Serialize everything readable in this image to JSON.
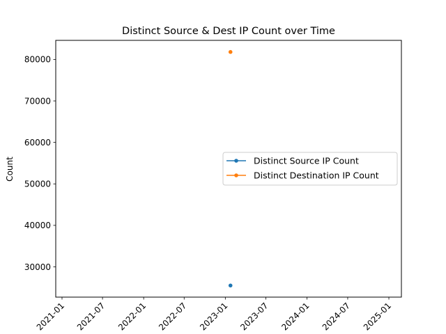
{
  "chart_data": {
    "type": "line",
    "title": "Distinct Source & Dest IP Count over Time",
    "xlabel": "",
    "ylabel": "Count",
    "x_axis": "date",
    "xlim": [
      "2020-12-04",
      "2025-02-26"
    ],
    "ylim": [
      22700,
      84600
    ],
    "x_ticks": [
      "2021-01",
      "2021-07",
      "2022-01",
      "2022-07",
      "2023-01",
      "2023-07",
      "2024-01",
      "2024-07",
      "2025-01"
    ],
    "y_ticks": [
      30000,
      40000,
      50000,
      60000,
      70000,
      80000
    ],
    "grid": false,
    "legend_position": "center-right",
    "series": [
      {
        "name": "Distinct Source IP Count",
        "color": "#1f77b4",
        "x": [
          "2023-01-24"
        ],
        "y": [
          25500
        ]
      },
      {
        "name": "Distinct Destination IP Count",
        "color": "#ff7f0e",
        "x": [
          "2023-01-24"
        ],
        "y": [
          81800
        ]
      }
    ]
  }
}
